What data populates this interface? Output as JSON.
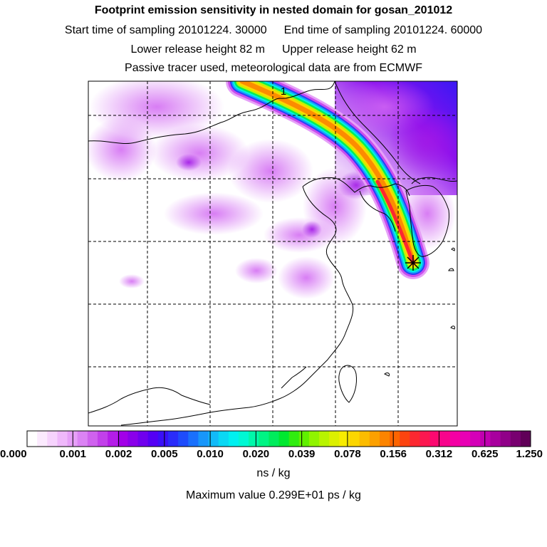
{
  "header": {
    "title": "Footprint emission sensitivity in nested domain for gosan_201012",
    "start_label": "Start time of sampling 20101224. 30000",
    "end_label": "End time of sampling 20101224. 60000",
    "lower_label": "Lower release height   82 m",
    "upper_label": "Upper release height   62 m",
    "note": "Passive tracer used, meteorological data are from ECMWF"
  },
  "map": {
    "plume_label": "1",
    "receptor_marker": "receptor-star"
  },
  "colorbar": {
    "tick_labels": [
      "0.000",
      "0.001",
      "0.002",
      "0.005",
      "0.010",
      "0.020",
      "0.039",
      "0.078",
      "0.156",
      "0.312",
      "0.625",
      "1.250"
    ],
    "colors": [
      "#ffffff",
      "#fbeafe",
      "#f6d3fd",
      "#efb8fb",
      "#e69ff8",
      "#db83f4",
      "#cf62ee",
      "#c240ea",
      "#b41de8",
      "#a200e8",
      "#8a00ea",
      "#7000ee",
      "#5400f4",
      "#3a10f8",
      "#2a2cfa",
      "#1e4cfc",
      "#1a70fc",
      "#1896fa",
      "#12baf8",
      "#0ad8f4",
      "#00f0f0",
      "#00f8d4",
      "#00f8aa",
      "#00f484",
      "#00ec5c",
      "#00e830",
      "#30ec10",
      "#60f000",
      "#90f400",
      "#b8f400",
      "#dcf000",
      "#f8ec00",
      "#fcd600",
      "#fcbc00",
      "#fca000",
      "#fc8400",
      "#fc6400",
      "#fc4410",
      "#fc2830",
      "#fc1850",
      "#fc0870",
      "#f8048c",
      "#f400a4",
      "#e800b4",
      "#d400b8",
      "#c000b0",
      "#a8009e",
      "#900088",
      "#780070",
      "#600058"
    ],
    "units": "ns / kg",
    "max_value_label": "Maximum value  0.299E+01 ps / kg"
  }
}
